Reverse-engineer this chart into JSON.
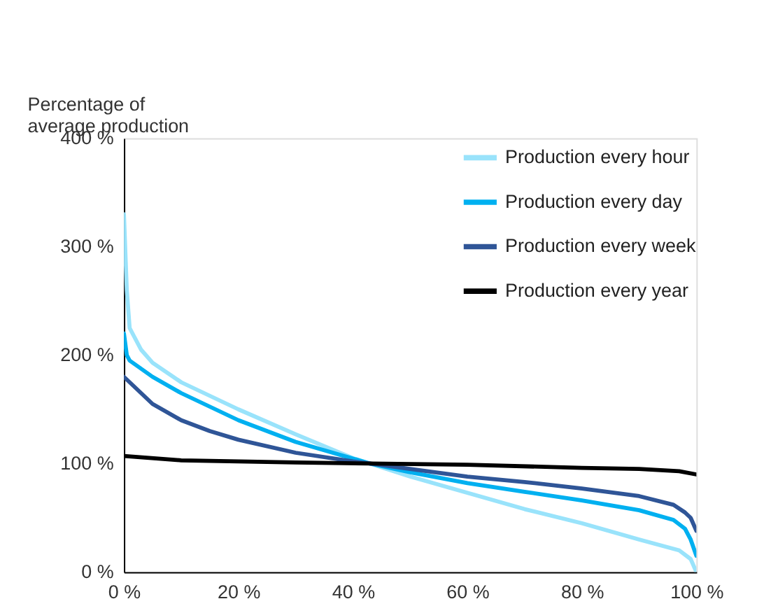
{
  "chart_data": {
    "type": "line",
    "ylabel": "Percentage of average production",
    "xlim": [
      0,
      100
    ],
    "ylim": [
      0,
      400
    ],
    "xticks": [
      {
        "value": 0,
        "label": "0 %"
      },
      {
        "value": 20,
        "label": "20 %"
      },
      {
        "value": 40,
        "label": "40 %"
      },
      {
        "value": 60,
        "label": "60 %"
      },
      {
        "value": 80,
        "label": "80 %"
      },
      {
        "value": 100,
        "label": "100 %"
      }
    ],
    "yticks": [
      {
        "value": 0,
        "label": "0 %"
      },
      {
        "value": 100,
        "label": "100 %"
      },
      {
        "value": 200,
        "label": "200 %"
      },
      {
        "value": 300,
        "label": "300 %"
      },
      {
        "value": 400,
        "label": "400 %"
      }
    ],
    "grid": false,
    "legend": "top right",
    "marker": "none",
    "line_style": "solid",
    "series": [
      {
        "name": "Production every hour",
        "color": "#99e3fb",
        "x": [
          0,
          0.5,
          1,
          3,
          5,
          10,
          20,
          30,
          40,
          43,
          50,
          60,
          70,
          80,
          90,
          97,
          99,
          100
        ],
        "values": [
          330,
          260,
          225,
          205,
          193,
          175,
          150,
          127,
          105,
          100,
          88,
          73,
          58,
          45,
          30,
          20,
          12,
          0
        ]
      },
      {
        "name": "Production every day",
        "color": "#00b0f0",
        "x": [
          0,
          0.5,
          1,
          5,
          10,
          20,
          30,
          43,
          50,
          60,
          70,
          80,
          90,
          96,
          98,
          99,
          100
        ],
        "values": [
          220,
          200,
          195,
          180,
          165,
          140,
          120,
          100,
          92,
          82,
          74,
          66,
          57,
          48,
          40,
          30,
          15
        ]
      },
      {
        "name": "Production every week",
        "color": "#2f5597",
        "x": [
          0,
          1,
          3,
          5,
          10,
          15,
          20,
          30,
          40,
          43,
          50,
          60,
          70,
          80,
          90,
          96,
          98,
          99,
          100
        ],
        "values": [
          180,
          175,
          165,
          155,
          140,
          130,
          122,
          110,
          102,
          100,
          95,
          88,
          83,
          77,
          70,
          62,
          55,
          50,
          38
        ]
      },
      {
        "name": "Production every year",
        "color": "#000000",
        "x": [
          0,
          10,
          20,
          30,
          43,
          60,
          80,
          90,
          97,
          100
        ],
        "values": [
          107,
          103,
          102,
          101,
          100,
          99,
          96,
          95,
          93,
          90
        ]
      }
    ]
  }
}
